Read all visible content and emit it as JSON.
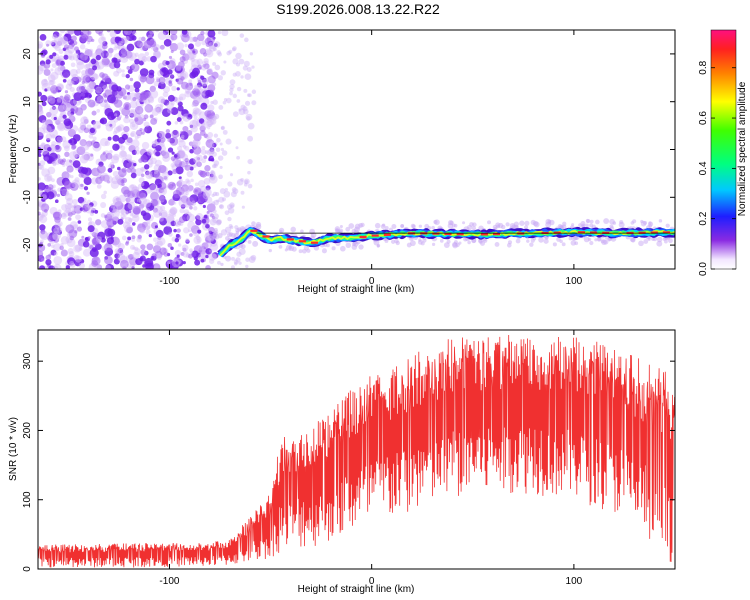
{
  "title": "S199.2026.008.13.22.R22",
  "chart_data": [
    {
      "type": "heatmap",
      "title": "",
      "xlabel": "Height of straight line (km)",
      "ylabel": "Frequency (Hz)",
      "xlim": [
        -165,
        150
      ],
      "ylim": [
        -25,
        25
      ],
      "x_ticks": [
        -100,
        0,
        100
      ],
      "y_ticks": [
        -20,
        -10,
        0,
        10,
        20
      ],
      "colorbar": {
        "label": "Normalized spectral amplitude",
        "range": [
          0,
          0.95
        ],
        "ticks": [
          0,
          0.2,
          0.4,
          0.6,
          0.8
        ]
      },
      "signal_trace": [
        {
          "x": -75,
          "y": -22
        },
        {
          "x": -70,
          "y": -20
        },
        {
          "x": -65,
          "y": -19
        },
        {
          "x": -60,
          "y": -17
        },
        {
          "x": -55,
          "y": -18
        },
        {
          "x": -50,
          "y": -19
        },
        {
          "x": -45,
          "y": -18.5
        },
        {
          "x": -40,
          "y": -19
        },
        {
          "x": -30,
          "y": -19.5
        },
        {
          "x": -20,
          "y": -18.5
        },
        {
          "x": -10,
          "y": -18.5
        },
        {
          "x": 0,
          "y": -18
        },
        {
          "x": 20,
          "y": -17.5
        },
        {
          "x": 50,
          "y": -17.8
        },
        {
          "x": 80,
          "y": -17.5
        },
        {
          "x": 100,
          "y": -17.3
        },
        {
          "x": 120,
          "y": -17.5
        },
        {
          "x": 150,
          "y": -17.3
        }
      ],
      "reference_line": {
        "y": -17.5,
        "x_start": -57,
        "x_end": 150
      }
    },
    {
      "type": "line",
      "title": "",
      "xlabel": "Height of straight line (km)",
      "ylabel": "SNR (10 * v/v)",
      "xlim": [
        -165,
        150
      ],
      "ylim": [
        0,
        345
      ],
      "x_ticks": [
        -100,
        0,
        100
      ],
      "y_ticks": [
        0,
        100,
        200,
        300
      ],
      "series": [
        {
          "name": "SNR",
          "color": "#f03030",
          "envelope": [
            {
              "x": -165,
              "upper": 35,
              "lower": 2
            },
            {
              "x": -120,
              "upper": 37,
              "lower": 2
            },
            {
              "x": -80,
              "upper": 38,
              "lower": 4
            },
            {
              "x": -70,
              "upper": 45,
              "lower": 5
            },
            {
              "x": -60,
              "upper": 75,
              "lower": 10
            },
            {
              "x": -50,
              "upper": 110,
              "lower": 15
            },
            {
              "x": -45,
              "upper": 190,
              "lower": 25
            },
            {
              "x": -30,
              "upper": 210,
              "lower": 30
            },
            {
              "x": -20,
              "upper": 230,
              "lower": 40
            },
            {
              "x": -10,
              "upper": 260,
              "lower": 50
            },
            {
              "x": 0,
              "upper": 280,
              "lower": 60
            },
            {
              "x": 20,
              "upper": 310,
              "lower": 80
            },
            {
              "x": 40,
              "upper": 335,
              "lower": 100
            },
            {
              "x": 70,
              "upper": 340,
              "lower": 110
            },
            {
              "x": 100,
              "upper": 340,
              "lower": 100
            },
            {
              "x": 120,
              "upper": 320,
              "lower": 80
            },
            {
              "x": 135,
              "upper": 300,
              "lower": 40
            },
            {
              "x": 150,
              "upper": 280,
              "lower": 5
            }
          ]
        }
      ]
    }
  ]
}
